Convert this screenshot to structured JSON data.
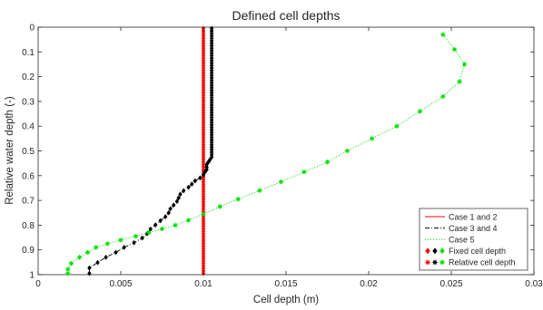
{
  "chart_data": {
    "type": "line",
    "title": "Defined cell depths",
    "xlabel": "Cell depth (m)",
    "ylabel": "Relative water depth (-)",
    "xlim": [
      0,
      0.03
    ],
    "ylim": [
      0,
      1
    ],
    "y_reversed": true,
    "grid": false,
    "legend_position": "bottom-right",
    "x_ticks": [
      0,
      0.005,
      0.01,
      0.015,
      0.02,
      0.025,
      0.03
    ],
    "x_tick_labels": [
      "0",
      "0.005",
      "0.01",
      "0.015",
      "0.02",
      "0.025",
      "0.03"
    ],
    "y_ticks": [
      0,
      0.1,
      0.2,
      0.3,
      0.4,
      0.5,
      0.6,
      0.7,
      0.8,
      0.9,
      1
    ],
    "y_tick_labels": [
      "0",
      "0.1",
      "0.2",
      "0.3",
      "0.4",
      "0.5",
      "0.6",
      "0.7",
      "0.8",
      "0.9",
      "1"
    ],
    "series": [
      {
        "name": "Case 1 and 2",
        "color": "#ff0000",
        "line": "solid",
        "marker": "diamond",
        "points": [
          [
            0.01,
            0.005
          ],
          [
            0.01,
            0.015
          ],
          [
            0.01,
            0.025
          ],
          [
            0.01,
            0.035
          ],
          [
            0.01,
            0.045
          ],
          [
            0.01,
            0.055
          ],
          [
            0.01,
            0.065
          ],
          [
            0.01,
            0.075
          ],
          [
            0.01,
            0.085
          ],
          [
            0.01,
            0.095
          ],
          [
            0.01,
            0.105
          ],
          [
            0.01,
            0.115
          ],
          [
            0.01,
            0.125
          ],
          [
            0.01,
            0.135
          ],
          [
            0.01,
            0.145
          ],
          [
            0.01,
            0.155
          ],
          [
            0.01,
            0.165
          ],
          [
            0.01,
            0.175
          ],
          [
            0.01,
            0.185
          ],
          [
            0.01,
            0.195
          ],
          [
            0.01,
            0.205
          ],
          [
            0.01,
            0.215
          ],
          [
            0.01,
            0.225
          ],
          [
            0.01,
            0.235
          ],
          [
            0.01,
            0.245
          ],
          [
            0.01,
            0.255
          ],
          [
            0.01,
            0.265
          ],
          [
            0.01,
            0.275
          ],
          [
            0.01,
            0.285
          ],
          [
            0.01,
            0.295
          ],
          [
            0.01,
            0.305
          ],
          [
            0.01,
            0.315
          ],
          [
            0.01,
            0.325
          ],
          [
            0.01,
            0.335
          ],
          [
            0.01,
            0.345
          ],
          [
            0.01,
            0.355
          ],
          [
            0.01,
            0.365
          ],
          [
            0.01,
            0.375
          ],
          [
            0.01,
            0.385
          ],
          [
            0.01,
            0.395
          ],
          [
            0.01,
            0.405
          ],
          [
            0.01,
            0.415
          ],
          [
            0.01,
            0.425
          ],
          [
            0.01,
            0.435
          ],
          [
            0.01,
            0.445
          ],
          [
            0.01,
            0.455
          ],
          [
            0.01,
            0.465
          ],
          [
            0.01,
            0.475
          ],
          [
            0.01,
            0.485
          ],
          [
            0.01,
            0.495
          ],
          [
            0.01,
            0.505
          ],
          [
            0.01,
            0.515
          ],
          [
            0.01,
            0.525
          ],
          [
            0.01,
            0.535
          ],
          [
            0.01,
            0.545
          ],
          [
            0.01,
            0.555
          ],
          [
            0.01,
            0.565
          ],
          [
            0.01,
            0.575
          ],
          [
            0.01,
            0.585
          ],
          [
            0.01,
            0.595
          ],
          [
            0.01,
            0.605
          ],
          [
            0.01,
            0.615
          ],
          [
            0.01,
            0.625
          ],
          [
            0.01,
            0.635
          ],
          [
            0.01,
            0.645
          ],
          [
            0.01,
            0.655
          ],
          [
            0.01,
            0.665
          ],
          [
            0.01,
            0.675
          ],
          [
            0.01,
            0.685
          ],
          [
            0.01,
            0.695
          ],
          [
            0.01,
            0.705
          ],
          [
            0.01,
            0.715
          ],
          [
            0.01,
            0.725
          ],
          [
            0.01,
            0.735
          ],
          [
            0.01,
            0.745
          ],
          [
            0.01,
            0.755
          ],
          [
            0.01,
            0.765
          ],
          [
            0.01,
            0.775
          ],
          [
            0.01,
            0.785
          ],
          [
            0.01,
            0.795
          ],
          [
            0.01,
            0.805
          ],
          [
            0.01,
            0.815
          ],
          [
            0.01,
            0.825
          ],
          [
            0.01,
            0.835
          ],
          [
            0.01,
            0.845
          ],
          [
            0.01,
            0.855
          ],
          [
            0.01,
            0.865
          ],
          [
            0.01,
            0.875
          ],
          [
            0.01,
            0.885
          ],
          [
            0.01,
            0.895
          ],
          [
            0.01,
            0.905
          ],
          [
            0.01,
            0.915
          ],
          [
            0.01,
            0.925
          ],
          [
            0.01,
            0.935
          ],
          [
            0.01,
            0.945
          ],
          [
            0.01,
            0.955
          ],
          [
            0.01,
            0.965
          ],
          [
            0.01,
            0.975
          ],
          [
            0.01,
            0.985
          ],
          [
            0.01,
            0.995
          ]
        ]
      },
      {
        "name": "Case 3 and 4",
        "color": "#000000",
        "line": "dash-dot",
        "marker": "diamond",
        "points": [
          [
            0.0105,
            0.005
          ],
          [
            0.0105,
            0.015
          ],
          [
            0.0105,
            0.025
          ],
          [
            0.0105,
            0.035
          ],
          [
            0.0105,
            0.045
          ],
          [
            0.0105,
            0.055
          ],
          [
            0.0105,
            0.065
          ],
          [
            0.0105,
            0.075
          ],
          [
            0.0105,
            0.085
          ],
          [
            0.0105,
            0.095
          ],
          [
            0.0105,
            0.105
          ],
          [
            0.0105,
            0.115
          ],
          [
            0.0105,
            0.125
          ],
          [
            0.0105,
            0.135
          ],
          [
            0.0105,
            0.145
          ],
          [
            0.0105,
            0.155
          ],
          [
            0.0105,
            0.165
          ],
          [
            0.0105,
            0.175
          ],
          [
            0.0105,
            0.185
          ],
          [
            0.0105,
            0.195
          ],
          [
            0.0105,
            0.205
          ],
          [
            0.0105,
            0.215
          ],
          [
            0.0105,
            0.225
          ],
          [
            0.0105,
            0.235
          ],
          [
            0.0105,
            0.245
          ],
          [
            0.0105,
            0.255
          ],
          [
            0.0105,
            0.265
          ],
          [
            0.0105,
            0.275
          ],
          [
            0.0105,
            0.285
          ],
          [
            0.0105,
            0.295
          ],
          [
            0.0105,
            0.305
          ],
          [
            0.0105,
            0.315
          ],
          [
            0.0105,
            0.325
          ],
          [
            0.0105,
            0.335
          ],
          [
            0.0105,
            0.345
          ],
          [
            0.0105,
            0.355
          ],
          [
            0.0105,
            0.365
          ],
          [
            0.0105,
            0.375
          ],
          [
            0.0105,
            0.385
          ],
          [
            0.0105,
            0.395
          ],
          [
            0.0105,
            0.405
          ],
          [
            0.0105,
            0.415
          ],
          [
            0.0105,
            0.425
          ],
          [
            0.0105,
            0.435
          ],
          [
            0.0105,
            0.445
          ],
          [
            0.0105,
            0.455
          ],
          [
            0.0105,
            0.465
          ],
          [
            0.0105,
            0.475
          ],
          [
            0.0105,
            0.485
          ],
          [
            0.0105,
            0.495
          ],
          [
            0.0105,
            0.505
          ],
          [
            0.0105,
            0.515
          ],
          [
            0.0105,
            0.525
          ],
          [
            0.0104,
            0.535
          ],
          [
            0.0103,
            0.545
          ],
          [
            0.0102,
            0.555
          ],
          [
            0.0102,
            0.565
          ],
          [
            0.0102,
            0.575
          ],
          [
            0.0101,
            0.585
          ],
          [
            0.01,
            0.597
          ],
          [
            0.0098,
            0.609
          ],
          [
            0.0095,
            0.621
          ],
          [
            0.0093,
            0.634
          ],
          [
            0.0091,
            0.647
          ],
          [
            0.0088,
            0.661
          ],
          [
            0.0086,
            0.675
          ],
          [
            0.0085,
            0.69
          ],
          [
            0.0084,
            0.704
          ],
          [
            0.0082,
            0.719
          ],
          [
            0.008,
            0.734
          ],
          [
            0.0079,
            0.75
          ],
          [
            0.0077,
            0.766
          ],
          [
            0.0074,
            0.782
          ],
          [
            0.0071,
            0.799
          ],
          [
            0.0068,
            0.816
          ],
          [
            0.0066,
            0.834
          ],
          [
            0.0063,
            0.852
          ],
          [
            0.0058,
            0.871
          ],
          [
            0.0052,
            0.89
          ],
          [
            0.0047,
            0.91
          ],
          [
            0.0041,
            0.93
          ],
          [
            0.0036,
            0.951
          ],
          [
            0.0031,
            0.973
          ],
          [
            0.0031,
            0.995
          ]
        ]
      },
      {
        "name": "Case 5",
        "color": "#00e000",
        "line": "dotted",
        "marker": "star",
        "points": [
          [
            0.0245,
            0.03
          ],
          [
            0.0252,
            0.09
          ],
          [
            0.0258,
            0.15
          ],
          [
            0.0255,
            0.22
          ],
          [
            0.0245,
            0.28
          ],
          [
            0.0231,
            0.34
          ],
          [
            0.0217,
            0.4
          ],
          [
            0.0202,
            0.45
          ],
          [
            0.0187,
            0.5
          ],
          [
            0.0175,
            0.545
          ],
          [
            0.0161,
            0.585
          ],
          [
            0.0147,
            0.625
          ],
          [
            0.0134,
            0.66
          ],
          [
            0.0121,
            0.695
          ],
          [
            0.011,
            0.725
          ],
          [
            0.01,
            0.755
          ],
          [
            0.0091,
            0.78
          ],
          [
            0.0083,
            0.8
          ],
          [
            0.0075,
            0.815
          ],
          [
            0.0067,
            0.83
          ],
          [
            0.0059,
            0.845
          ],
          [
            0.005,
            0.86
          ],
          [
            0.0042,
            0.875
          ],
          [
            0.0035,
            0.89
          ],
          [
            0.003,
            0.91
          ],
          [
            0.0025,
            0.93
          ],
          [
            0.002,
            0.955
          ],
          [
            0.0018,
            0.978
          ],
          [
            0.0018,
            0.995
          ]
        ]
      }
    ],
    "legend": [
      {
        "label": "Case 1 and 2",
        "color": "#ff0000",
        "line": "solid"
      },
      {
        "label": "Case 3 and 4",
        "color": "#000000",
        "line": "dash-dot"
      },
      {
        "label": "Case 5",
        "color": "#00e000",
        "line": "dotted"
      },
      {
        "label": "Fixed cell depth",
        "colors": [
          "#ff0000",
          "#000000",
          "#00e000"
        ],
        "marker": "diamond"
      },
      {
        "label": "Relative cell depth",
        "colors": [
          "#ff0000",
          "#000000",
          "#00e000"
        ],
        "marker": "star"
      }
    ]
  }
}
